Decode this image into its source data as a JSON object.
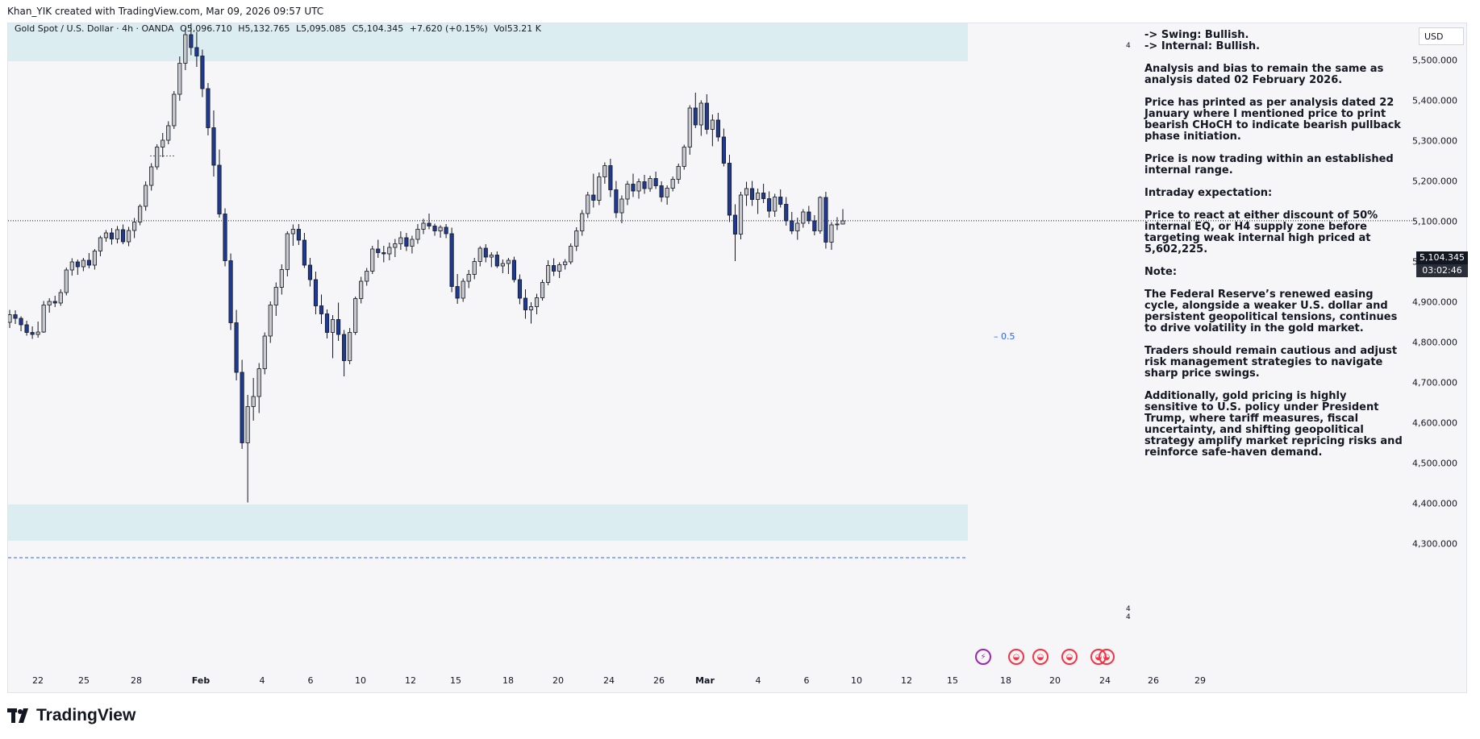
{
  "caption": "Khan_YIK created with TradingView.com, Mar 09, 2026 09:57 UTC",
  "symbol": {
    "name": "Gold Spot / U.S. Dollar · 4h · OANDA",
    "open": "O5,096.710",
    "high": "H5,132.765",
    "low": "L5,095.085",
    "close": "C5,104.345",
    "change": "+7.620 (+0.15%)",
    "volume": "Vol53.21 K"
  },
  "currency": "USD",
  "last_price": "5,104.345",
  "countdown": "03:02:46",
  "fib_label": "0.5",
  "zone_marks": [
    "4",
    "4",
    "4"
  ],
  "brand": "TradingView",
  "notes": {
    "swing": "-> Swing:  Bullish.",
    "internal": "-> Internal:  Bullish.",
    "p1": "Analysis and bias to remain the same as analysis dated 02 February 2026.",
    "p2": "Price has printed as per analysis dated 22 January where I mentioned price to print bearish CHoCH to indicate bearish pullback phase initiation.",
    "p3": "Price is now trading within an established internal range.",
    "p4": "Intraday expectation:",
    "p5": "Price to react at either discount of 50% internal EQ, or H4 supply zone before targeting weak internal high priced at 5,602,225.",
    "p6": "Note:",
    "p7": "The Federal Reserve’s renewed easing cycle, alongside a weaker U.S. dollar and persistent geopolitical tensions, continues to drive volatility in the gold market.",
    "p8": "Traders should remain cautious and adjust risk management strategies to navigate sharp price swings.",
    "p9": "Additionally, gold pricing is highly sensitive to U.S. policy under President Trump, where tariff measures, fiscal uncertainty, and shifting geopolitical strategy amplify market repricing risks and reinforce safe-haven demand."
  },
  "colors": {
    "up_body": "#c7c8cc",
    "down_body": "#1f3a93",
    "zone": "#dcedf2",
    "fib": "#2962ff",
    "dashed": "#2962ff"
  },
  "chart_data": {
    "type": "candlestick",
    "ylim": [
      4245,
      5600
    ],
    "y_ticks": [
      "5,500.000",
      "5,400.000",
      "5,300.000",
      "5,200.000",
      "5,100.000",
      "5,000.000",
      "4,900.000",
      "4,800.000",
      "4,700.000",
      "4,600.000",
      "4,500.000",
      "4,400.000",
      "4,300.000"
    ],
    "y_tick_values": [
      5500,
      5400,
      5300,
      5200,
      5100,
      5000,
      4900,
      4800,
      4700,
      4600,
      4500,
      4400,
      4300
    ],
    "x_ticks": [
      {
        "label": "22",
        "bold": false
      },
      {
        "label": "25",
        "bold": false
      },
      {
        "label": "28",
        "bold": false
      },
      {
        "label": "Feb",
        "bold": true
      },
      {
        "label": "4",
        "bold": false
      },
      {
        "label": "6",
        "bold": false
      },
      {
        "label": "10",
        "bold": false
      },
      {
        "label": "12",
        "bold": false
      },
      {
        "label": "15",
        "bold": false
      },
      {
        "label": "18",
        "bold": false
      },
      {
        "label": "20",
        "bold": false
      },
      {
        "label": "24",
        "bold": false
      },
      {
        "label": "26",
        "bold": false
      },
      {
        "label": "Mar",
        "bold": true
      },
      {
        "label": "4",
        "bold": false
      },
      {
        "label": "6",
        "bold": false
      },
      {
        "label": "10",
        "bold": false
      },
      {
        "label": "12",
        "bold": false
      },
      {
        "label": "15",
        "bold": false
      },
      {
        "label": "18",
        "bold": false
      },
      {
        "label": "20",
        "bold": false
      },
      {
        "label": "24",
        "bold": false
      },
      {
        "label": "26",
        "bold": false
      },
      {
        "label": "29",
        "bold": false
      }
    ],
    "last_close": 5104.345,
    "fib_level": 4934,
    "supply_zone": [
      5500,
      5600
    ],
    "demand_zone": [
      4310,
      4400
    ],
    "range_high_dashed": 5600,
    "range_low_dashed": 4268,
    "candles": [
      [
        4852,
        4883,
        4838,
        4871
      ],
      [
        4871,
        4882,
        4848,
        4862
      ],
      [
        4862,
        4867,
        4830,
        4846
      ],
      [
        4846,
        4856,
        4819,
        4827
      ],
      [
        4827,
        4842,
        4811,
        4822
      ],
      [
        4822,
        4854,
        4814,
        4828
      ],
      [
        4828,
        4905,
        4826,
        4895
      ],
      [
        4895,
        4912,
        4876,
        4904
      ],
      [
        4904,
        4918,
        4890,
        4900
      ],
      [
        4900,
        4934,
        4893,
        4926
      ],
      [
        4926,
        4988,
        4919,
        4982
      ],
      [
        4982,
        5011,
        4968,
        5002
      ],
      [
        5002,
        5008,
        4970,
        4990
      ],
      [
        4990,
        5012,
        4979,
        5006
      ],
      [
        5006,
        5024,
        4986,
        4994
      ],
      [
        4994,
        5034,
        4983,
        5029
      ],
      [
        5029,
        5067,
        5016,
        5062
      ],
      [
        5062,
        5081,
        5052,
        5074
      ],
      [
        5074,
        5086,
        5045,
        5059
      ],
      [
        5059,
        5091,
        5048,
        5082
      ],
      [
        5082,
        5095,
        5046,
        5052
      ],
      [
        5052,
        5089,
        5041,
        5080
      ],
      [
        5080,
        5111,
        5061,
        5101
      ],
      [
        5101,
        5145,
        5093,
        5140
      ],
      [
        5140,
        5202,
        5129,
        5192
      ],
      [
        5192,
        5247,
        5179,
        5238
      ],
      [
        5238,
        5294,
        5231,
        5287
      ],
      [
        5287,
        5322,
        5262,
        5304
      ],
      [
        5304,
        5351,
        5294,
        5340
      ],
      [
        5340,
        5426,
        5332,
        5418
      ],
      [
        5418,
        5512,
        5402,
        5495
      ],
      [
        5495,
        5582,
        5478,
        5566
      ],
      [
        5566,
        5598,
        5515,
        5534
      ],
      [
        5534,
        5573,
        5486,
        5513
      ],
      [
        5513,
        5529,
        5411,
        5432
      ],
      [
        5432,
        5446,
        5316,
        5335
      ],
      [
        5335,
        5378,
        5214,
        5242
      ],
      [
        5242,
        5281,
        5112,
        5121
      ],
      [
        5121,
        5135,
        4991,
        5005
      ],
      [
        5005,
        5023,
        4833,
        4851
      ],
      [
        4851,
        4883,
        4708,
        4728
      ],
      [
        4728,
        4759,
        4538,
        4553
      ],
      [
        4553,
        4672,
        4405,
        4643
      ],
      [
        4643,
        4714,
        4608,
        4668
      ],
      [
        4668,
        4751,
        4627,
        4737
      ],
      [
        4737,
        4827,
        4723,
        4818
      ],
      [
        4818,
        4904,
        4801,
        4895
      ],
      [
        4895,
        4951,
        4868,
        4939
      ],
      [
        4939,
        4996,
        4921,
        4983
      ],
      [
        4983,
        5078,
        4966,
        5072
      ],
      [
        5072,
        5095,
        5042,
        5083
      ],
      [
        5083,
        5096,
        5044,
        5056
      ],
      [
        5056,
        5074,
        4987,
        4994
      ],
      [
        4994,
        5012,
        4941,
        4958
      ],
      [
        4958,
        4978,
        4872,
        4893
      ],
      [
        4893,
        4921,
        4848,
        4873
      ],
      [
        4873,
        4884,
        4812,
        4827
      ],
      [
        4827,
        4870,
        4763,
        4859
      ],
      [
        4859,
        4901,
        4806,
        4822
      ],
      [
        4822,
        4833,
        4718,
        4757
      ],
      [
        4757,
        4838,
        4748,
        4827
      ],
      [
        4827,
        4916,
        4821,
        4911
      ],
      [
        4911,
        4965,
        4899,
        4954
      ],
      [
        4954,
        4987,
        4943,
        4979
      ],
      [
        4979,
        5042,
        4972,
        5034
      ],
      [
        5034,
        5057,
        5012,
        5025
      ],
      [
        5025,
        5042,
        5001,
        5022
      ],
      [
        5022,
        5050,
        5006,
        5038
      ],
      [
        5038,
        5059,
        5014,
        5047
      ],
      [
        5047,
        5078,
        5032,
        5062
      ],
      [
        5062,
        5074,
        5029,
        5041
      ],
      [
        5041,
        5067,
        5023,
        5058
      ],
      [
        5058,
        5096,
        5047,
        5083
      ],
      [
        5083,
        5109,
        5071,
        5098
      ],
      [
        5098,
        5122,
        5083,
        5091
      ],
      [
        5091,
        5097,
        5067,
        5079
      ],
      [
        5079,
        5093,
        5062,
        5088
      ],
      [
        5088,
        5096,
        5061,
        5072
      ],
      [
        5072,
        5087,
        4927,
        4941
      ],
      [
        4941,
        4972,
        4898,
        4912
      ],
      [
        4912,
        4961,
        4903,
        4954
      ],
      [
        4954,
        4982,
        4937,
        4971
      ],
      [
        4971,
        5012,
        4959,
        5003
      ],
      [
        5003,
        5041,
        4991,
        5036
      ],
      [
        5036,
        5046,
        5001,
        5014
      ],
      [
        5014,
        5026,
        4989,
        5019
      ],
      [
        5019,
        5028,
        4987,
        4992
      ],
      [
        4992,
        5008,
        4974,
        4998
      ],
      [
        4998,
        5012,
        4972,
        5006
      ],
      [
        5006,
        5015,
        4951,
        4958
      ],
      [
        4958,
        4971,
        4897,
        4912
      ],
      [
        4912,
        4934,
        4861,
        4883
      ],
      [
        4883,
        4902,
        4849,
        4891
      ],
      [
        4891,
        4923,
        4872,
        4913
      ],
      [
        4913,
        4958,
        4906,
        4951
      ],
      [
        4951,
        5006,
        4944,
        4993
      ],
      [
        4993,
        5011,
        4967,
        4979
      ],
      [
        4979,
        5001,
        4962,
        4995
      ],
      [
        4995,
        5009,
        4983,
        5002
      ],
      [
        5002,
        5048,
        4996,
        5041
      ],
      [
        5041,
        5088,
        5029,
        5079
      ],
      [
        5079,
        5131,
        5067,
        5122
      ],
      [
        5122,
        5176,
        5111,
        5168
      ],
      [
        5168,
        5221,
        5137,
        5155
      ],
      [
        5155,
        5224,
        5143,
        5213
      ],
      [
        5213,
        5249,
        5196,
        5241
      ],
      [
        5241,
        5258,
        5163,
        5181
      ],
      [
        5181,
        5203,
        5111,
        5124
      ],
      [
        5124,
        5167,
        5098,
        5158
      ],
      [
        5158,
        5203,
        5143,
        5195
      ],
      [
        5195,
        5221,
        5163,
        5178
      ],
      [
        5178,
        5209,
        5159,
        5201
      ],
      [
        5201,
        5218,
        5171,
        5184
      ],
      [
        5184,
        5216,
        5176,
        5209
      ],
      [
        5209,
        5226,
        5183,
        5191
      ],
      [
        5191,
        5202,
        5151,
        5163
      ],
      [
        5163,
        5192,
        5144,
        5185
      ],
      [
        5185,
        5214,
        5177,
        5207
      ],
      [
        5207,
        5246,
        5196,
        5239
      ],
      [
        5239,
        5293,
        5231,
        5287
      ],
      [
        5287,
        5391,
        5268,
        5384
      ],
      [
        5384,
        5422,
        5334,
        5342
      ],
      [
        5342,
        5403,
        5315,
        5396
      ],
      [
        5396,
        5418,
        5319,
        5331
      ],
      [
        5331,
        5368,
        5289,
        5354
      ],
      [
        5354,
        5372,
        5301,
        5312
      ],
      [
        5312,
        5333,
        5239,
        5247
      ],
      [
        5247,
        5268,
        5101,
        5118
      ],
      [
        5118,
        5145,
        5004,
        5071
      ],
      [
        5071,
        5176,
        5058,
        5168
      ],
      [
        5168,
        5201,
        5141,
        5184
      ],
      [
        5184,
        5203,
        5141,
        5157
      ],
      [
        5157,
        5184,
        5121,
        5173
      ],
      [
        5173,
        5196,
        5148,
        5159
      ],
      [
        5159,
        5177,
        5112,
        5128
      ],
      [
        5128,
        5171,
        5114,
        5163
      ],
      [
        5163,
        5182,
        5137,
        5145
      ],
      [
        5145,
        5163,
        5092,
        5104
      ],
      [
        5104,
        5126,
        5071,
        5079
      ],
      [
        5079,
        5112,
        5057,
        5098
      ],
      [
        5098,
        5133,
        5087,
        5126
      ],
      [
        5126,
        5141,
        5096,
        5104
      ],
      [
        5104,
        5118,
        5068,
        5079
      ],
      [
        5079,
        5165,
        5072,
        5162
      ],
      [
        5162,
        5176,
        5035,
        5051
      ],
      [
        5051,
        5101,
        5032,
        5094
      ],
      [
        5094,
        5113,
        5081,
        5096
      ],
      [
        5096,
        5133,
        5095,
        5104
      ]
    ]
  }
}
